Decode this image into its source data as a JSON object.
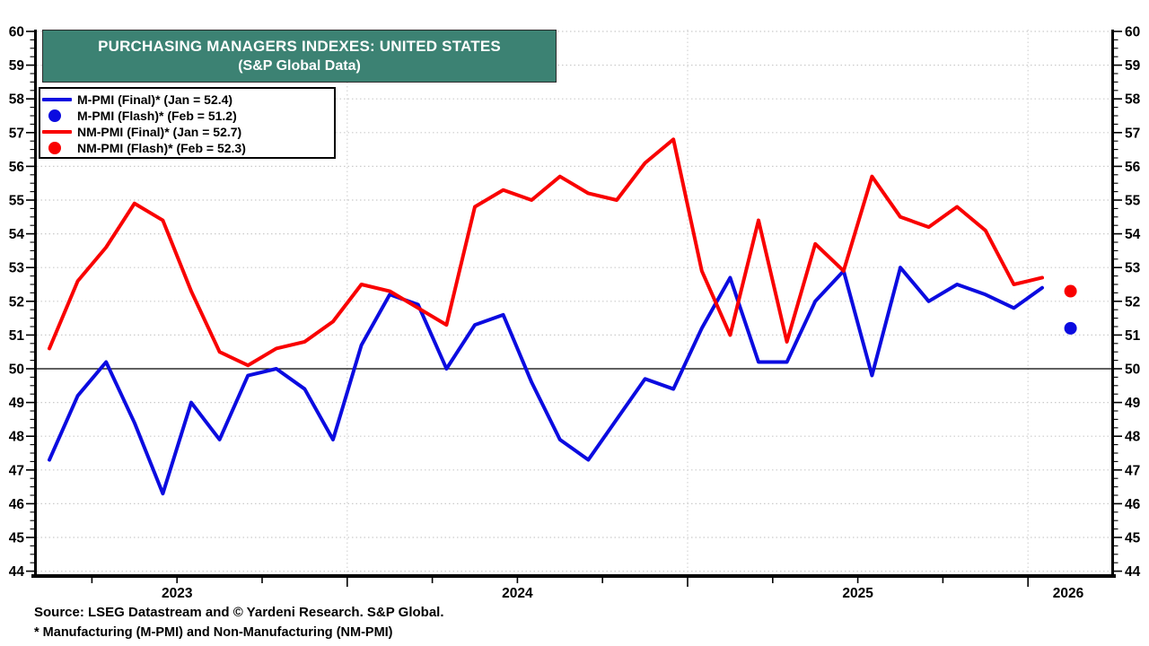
{
  "title": {
    "line1": "PURCHASING MANAGERS INDEXES: UNITED STATES",
    "line2": "(S&P Global Data)"
  },
  "colors": {
    "m_pmi_blue": "#0b0be0",
    "nm_pmi_red": "#f90000",
    "title_teal": "#3c8273",
    "grid_gray": "#cbcbcb",
    "axis_black": "#000000"
  },
  "legend": {
    "items": [
      {
        "label": "M-PMI (Final)* (Jan = 52.4)",
        "marker": "line",
        "color": "#0b0be0"
      },
      {
        "label": "M-PMI (Flash)* (Feb = 51.2)",
        "marker": "dot",
        "color": "#0b0be0"
      },
      {
        "label": "NM-PMI (Final)* (Jan = 52.7)",
        "marker": "line",
        "color": "#f90000"
      },
      {
        "label": "NM-PMI (Flash)* (Feb = 52.3)",
        "marker": "dot",
        "color": "#f90000"
      }
    ]
  },
  "footer": {
    "source": "Source: LSEG Datastream and © Yardeni Research. S&P Global.",
    "note": "* Manufacturing (M-PMI) and Non-Manufacturing (NM-PMI)"
  },
  "chart_data": {
    "type": "line",
    "title": "Purchasing Managers Indexes: United States (S&P Global Data)",
    "months": [
      "Feb 2023",
      "Mar 2023",
      "Apr 2023",
      "May 2023",
      "Jun 2023",
      "Jul 2023",
      "Aug 2023",
      "Sep 2023",
      "Oct 2023",
      "Nov 2023",
      "Dec 2023",
      "Jan 2024",
      "Feb 2024",
      "Mar 2024",
      "Apr 2024",
      "May 2024",
      "Jun 2024",
      "Jul 2024",
      "Aug 2024",
      "Sep 2024",
      "Oct 2024",
      "Nov 2024",
      "Dec 2024",
      "Jan 2025",
      "Feb 2025",
      "Mar 2025",
      "Apr 2025",
      "May 2025",
      "Jun 2025",
      "Jul 2025",
      "Aug 2025",
      "Sep 2025",
      "Oct 2025",
      "Nov 2025",
      "Dec 2025",
      "Jan 2026"
    ],
    "series": [
      {
        "name": "M-PMI (Final)",
        "color": "#0b0be0",
        "values": [
          47.3,
          49.2,
          50.2,
          48.4,
          46.3,
          49.0,
          47.9,
          49.8,
          50.0,
          49.4,
          47.9,
          50.7,
          52.2,
          51.9,
          50.0,
          51.3,
          51.6,
          49.6,
          47.9,
          47.3,
          48.5,
          49.7,
          49.4,
          51.2,
          52.7,
          50.2,
          50.2,
          52.0,
          52.9,
          49.8,
          53.0,
          52.0,
          52.5,
          52.2,
          51.8,
          52.4
        ]
      },
      {
        "name": "NM-PMI (Final)",
        "color": "#f90000",
        "values": [
          50.6,
          52.6,
          53.6,
          54.9,
          54.4,
          52.3,
          50.5,
          50.1,
          50.6,
          50.8,
          51.4,
          52.5,
          52.3,
          51.8,
          51.3,
          54.8,
          55.3,
          55.0,
          55.7,
          55.2,
          55.0,
          56.1,
          56.8,
          52.9,
          51.0,
          54.4,
          50.8,
          53.7,
          52.9,
          55.7,
          54.5,
          54.2,
          54.8,
          54.1,
          52.5,
          52.7
        ]
      }
    ],
    "flash_points": [
      {
        "name": "M-PMI (Flash)",
        "month": "Feb 2026",
        "value": 51.2,
        "color": "#0b0be0"
      },
      {
        "name": "NM-PMI (Flash)",
        "month": "Feb 2026",
        "value": 52.3,
        "color": "#f90000"
      }
    ],
    "ylabel": "",
    "xlabel": "",
    "ylim": [
      44,
      60
    ],
    "y_major_tick": 1,
    "y_minor_tick": 0.25,
    "reference_line": 50,
    "grid": "dotted horizontal at each integer; dotted vertical at year boundaries",
    "x_year_labels": [
      "2023",
      "2024",
      "2025",
      "2026"
    ],
    "x_tick_interval": "quarterly",
    "axis_labels_both_sides": true,
    "legend_position": "top-left"
  }
}
